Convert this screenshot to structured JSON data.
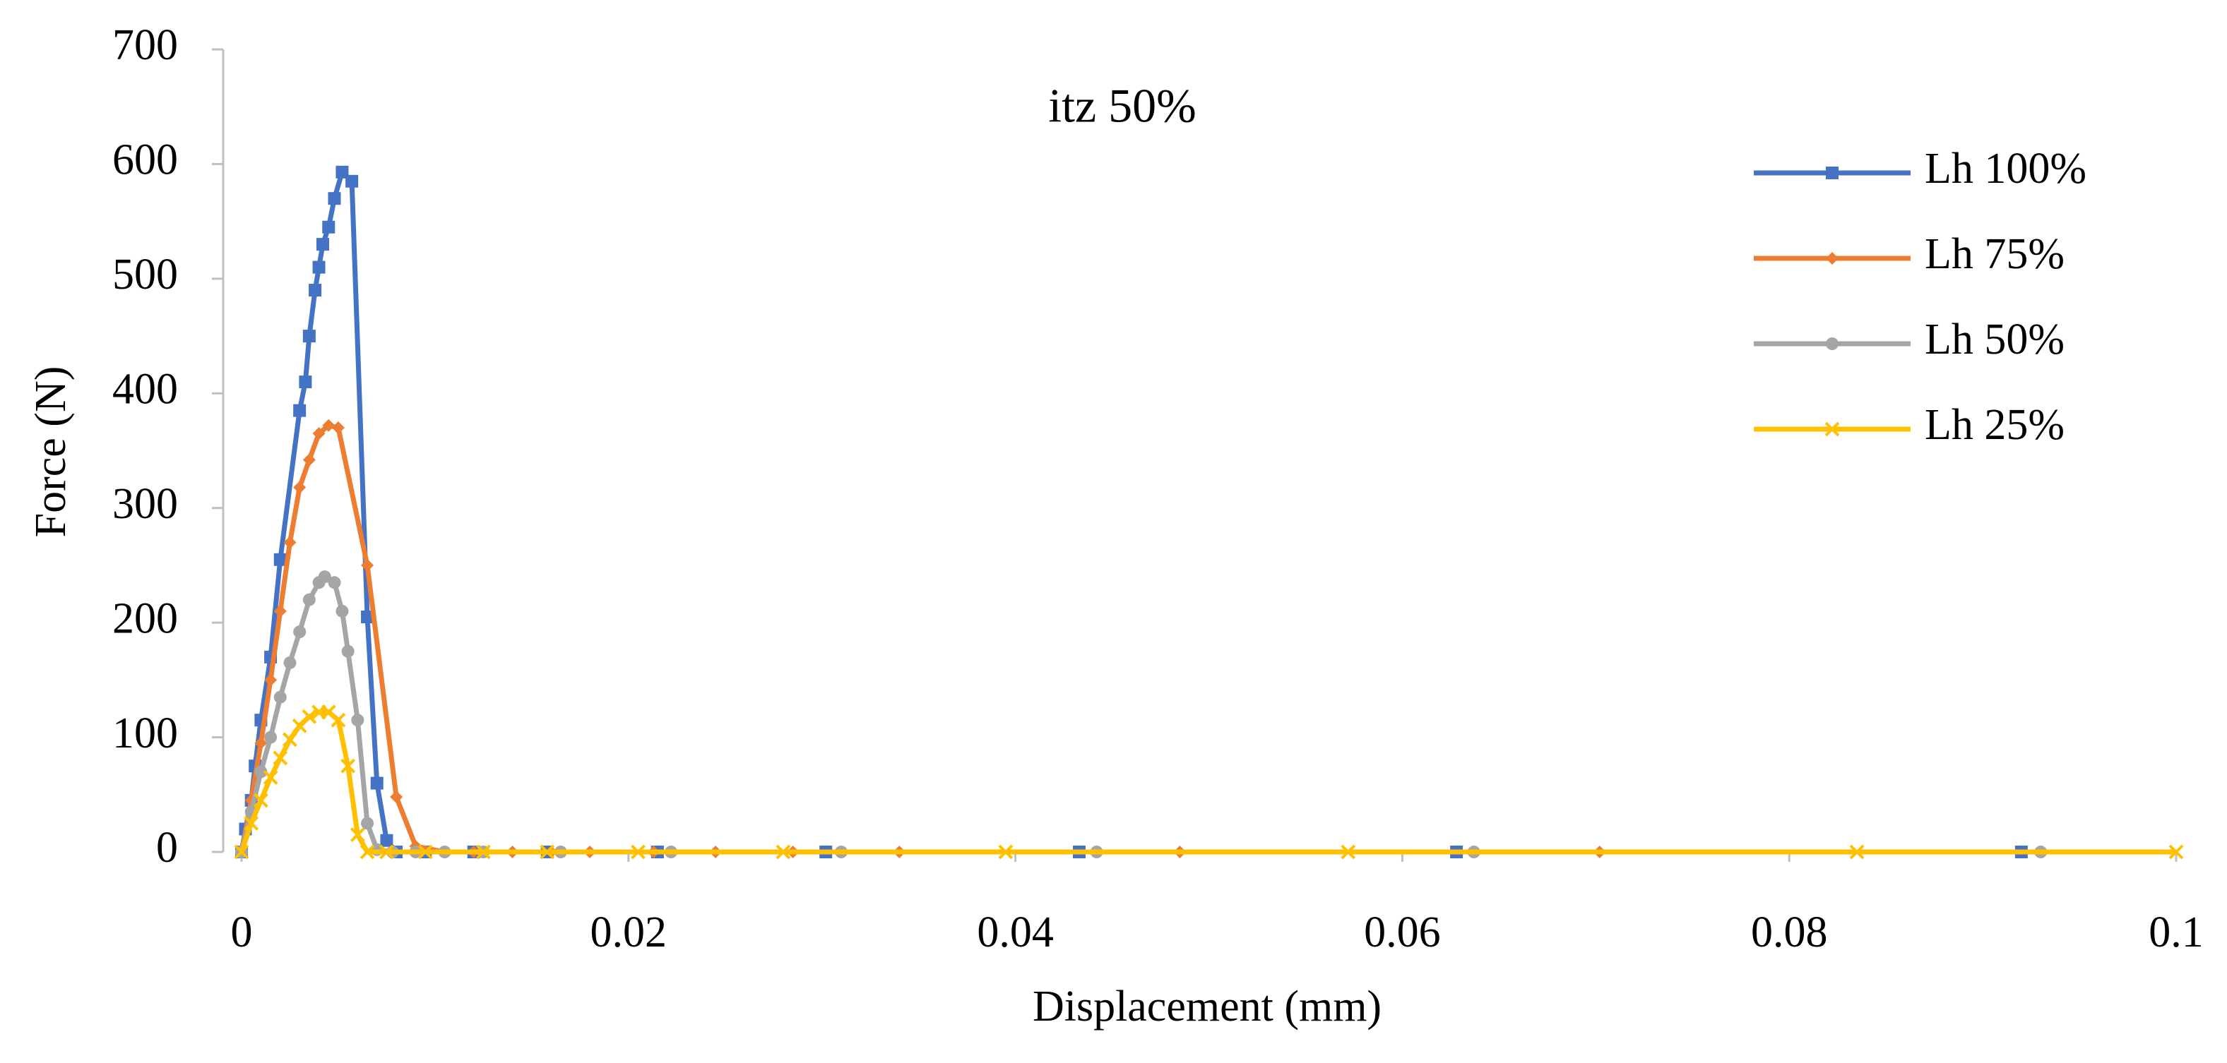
{
  "chart_data": {
    "type": "line",
    "title": "itz 50%",
    "x_label": "Displacement (mm)",
    "y_label": "Force (N)",
    "xlim": [
      0,
      0.1
    ],
    "ylim": [
      0,
      700
    ],
    "xticks": [
      0,
      0.02,
      0.04,
      0.06,
      0.08,
      0.1
    ],
    "yticks": [
      0,
      100,
      200,
      300,
      400,
      500,
      600,
      700
    ],
    "grid": false,
    "legend": "right",
    "series": [
      {
        "name": "Lh 100%",
        "color": "#4472c4",
        "marker": "square",
        "x": [
          0,
          0.0002,
          0.0005,
          0.0007,
          0.001,
          0.0015,
          0.002,
          0.003,
          0.0033,
          0.0035,
          0.0038,
          0.004,
          0.0042,
          0.0045,
          0.0048,
          0.0052,
          0.0057,
          0.0065,
          0.007,
          0.0075,
          0.008,
          0.0095,
          0.012,
          0.0158,
          0.0215,
          0.0302,
          0.0433,
          0.0628,
          0.092
        ],
        "values": [
          0,
          20,
          45,
          75,
          115,
          170,
          255,
          385,
          410,
          450,
          490,
          510,
          530,
          545,
          570,
          593,
          585,
          205,
          60,
          10,
          0,
          0,
          0,
          0,
          0,
          0,
          0,
          0,
          0
        ]
      },
      {
        "name": "Lh 75%",
        "color": "#ed7d31",
        "marker": "diamond",
        "x": [
          0,
          0.0005,
          0.001,
          0.0015,
          0.002,
          0.0025,
          0.003,
          0.0035,
          0.004,
          0.0045,
          0.005,
          0.0065,
          0.008,
          0.009,
          0.0105,
          0.012,
          0.014,
          0.016,
          0.018,
          0.0213,
          0.0245,
          0.0285,
          0.034,
          0.0485,
          0.0702
        ],
        "values": [
          0,
          45,
          95,
          150,
          210,
          270,
          318,
          342,
          365,
          372,
          370,
          250,
          48,
          5,
          0,
          0,
          0,
          0,
          0,
          0,
          0,
          0,
          0,
          0,
          0
        ]
      },
      {
        "name": "Lh 50%",
        "color": "#a5a5a5",
        "marker": "circle",
        "x": [
          0,
          0.0005,
          0.001,
          0.0015,
          0.002,
          0.0025,
          0.003,
          0.0035,
          0.004,
          0.0043,
          0.0048,
          0.0052,
          0.0055,
          0.006,
          0.0065,
          0.007,
          0.0078,
          0.009,
          0.0105,
          0.0125,
          0.0165,
          0.0222,
          0.031,
          0.0442,
          0.0637,
          0.093
        ],
        "values": [
          0,
          35,
          70,
          100,
          135,
          165,
          192,
          220,
          235,
          240,
          235,
          210,
          175,
          115,
          25,
          2,
          0,
          0,
          0,
          0,
          0,
          0,
          0,
          0,
          0,
          0
        ]
      },
      {
        "name": "Lh 25%",
        "color": "#ffc000",
        "marker": "x",
        "x": [
          0,
          0.0005,
          0.001,
          0.0015,
          0.002,
          0.0025,
          0.003,
          0.0035,
          0.004,
          0.0045,
          0.005,
          0.0055,
          0.006,
          0.0065,
          0.0075,
          0.0095,
          0.0125,
          0.0158,
          0.0205,
          0.028,
          0.0395,
          0.0572,
          0.0835,
          0.1
        ],
        "values": [
          0,
          25,
          45,
          65,
          82,
          98,
          110,
          118,
          122,
          122,
          115,
          75,
          15,
          0,
          0,
          0,
          0,
          0,
          0,
          0,
          0,
          0,
          0,
          0
        ]
      }
    ]
  }
}
